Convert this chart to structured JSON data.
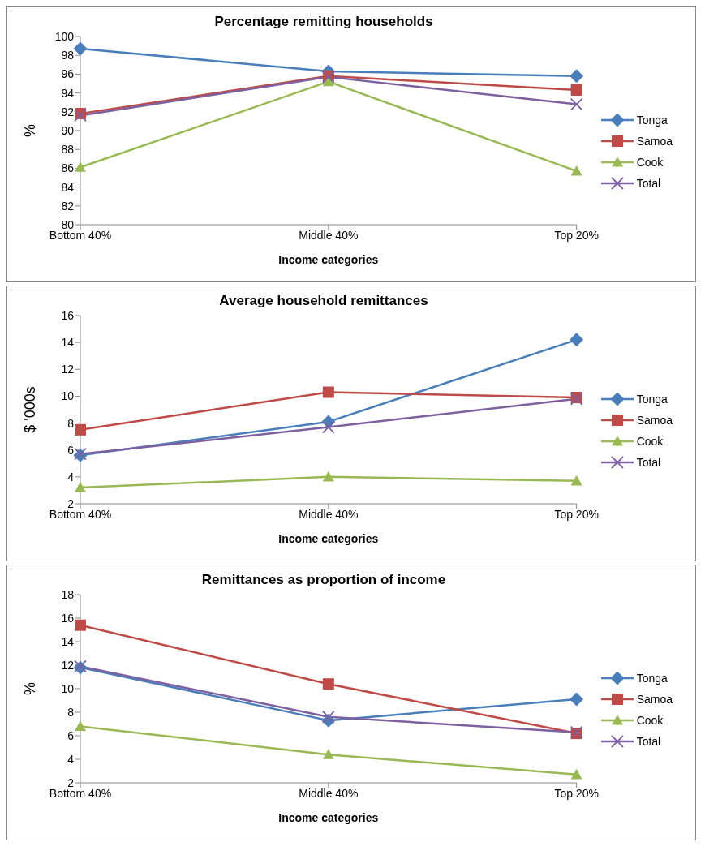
{
  "chart_data": [
    {
      "type": "line",
      "title": "Percentage remitting households",
      "xlabel": "Income categories",
      "ylabel": "%",
      "categories": [
        "Bottom 40%",
        "Middle 40%",
        "Top 20%"
      ],
      "ylim": [
        80,
        100
      ],
      "yticks": [
        80,
        82,
        84,
        86,
        88,
        90,
        92,
        94,
        96,
        98,
        100
      ],
      "grid": false,
      "legend": "right",
      "series": [
        {
          "name": "Tonga",
          "color": "#4a7ebb",
          "marker": "diamond",
          "values": [
            98.7,
            96.3,
            95.8
          ]
        },
        {
          "name": "Samoa",
          "color": "#be4b48",
          "marker": "square",
          "values": [
            91.8,
            95.8,
            94.3
          ]
        },
        {
          "name": "Cook",
          "color": "#98b954",
          "marker": "triangle",
          "values": [
            86.1,
            95.2,
            85.7
          ]
        },
        {
          "name": "Total",
          "color": "#7d60a0",
          "marker": "cross",
          "values": [
            91.6,
            95.7,
            92.8
          ]
        }
      ]
    },
    {
      "type": "line",
      "title": "Average household remittances",
      "xlabel": "Income categories",
      "ylabel": "$ '000s",
      "categories": [
        "Bottom 40%",
        "Middle 40%",
        "Top 20%"
      ],
      "ylim": [
        2,
        16
      ],
      "yticks": [
        2,
        4,
        6,
        8,
        10,
        12,
        14,
        16
      ],
      "grid": false,
      "legend": "right",
      "series": [
        {
          "name": "Tonga",
          "color": "#4a7ebb",
          "marker": "diamond",
          "values": [
            5.6,
            8.1,
            14.2
          ]
        },
        {
          "name": "Samoa",
          "color": "#be4b48",
          "marker": "square",
          "values": [
            7.5,
            10.3,
            9.9
          ]
        },
        {
          "name": "Cook",
          "color": "#98b954",
          "marker": "triangle",
          "values": [
            3.2,
            4.0,
            3.7
          ]
        },
        {
          "name": "Total",
          "color": "#7d60a0",
          "marker": "cross",
          "values": [
            5.7,
            7.7,
            9.8
          ]
        }
      ]
    },
    {
      "type": "line",
      "title": "Remittances as proportion of income",
      "xlabel": "Income categories",
      "ylabel": "%",
      "categories": [
        "Bottom 40%",
        "Middle 40%",
        "Top 20%"
      ],
      "ylim": [
        2,
        18
      ],
      "yticks": [
        2,
        4,
        6,
        8,
        10,
        12,
        14,
        16,
        18
      ],
      "grid": false,
      "legend": "right",
      "series": [
        {
          "name": "Tonga",
          "color": "#4a7ebb",
          "marker": "diamond",
          "values": [
            11.8,
            7.3,
            9.1
          ]
        },
        {
          "name": "Samoa",
          "color": "#be4b48",
          "marker": "square",
          "values": [
            15.4,
            10.4,
            6.2
          ]
        },
        {
          "name": "Cook",
          "color": "#98b954",
          "marker": "triangle",
          "values": [
            6.8,
            4.4,
            2.7
          ]
        },
        {
          "name": "Total",
          "color": "#7d60a0",
          "marker": "cross",
          "values": [
            11.9,
            7.6,
            6.3
          ]
        }
      ]
    }
  ]
}
